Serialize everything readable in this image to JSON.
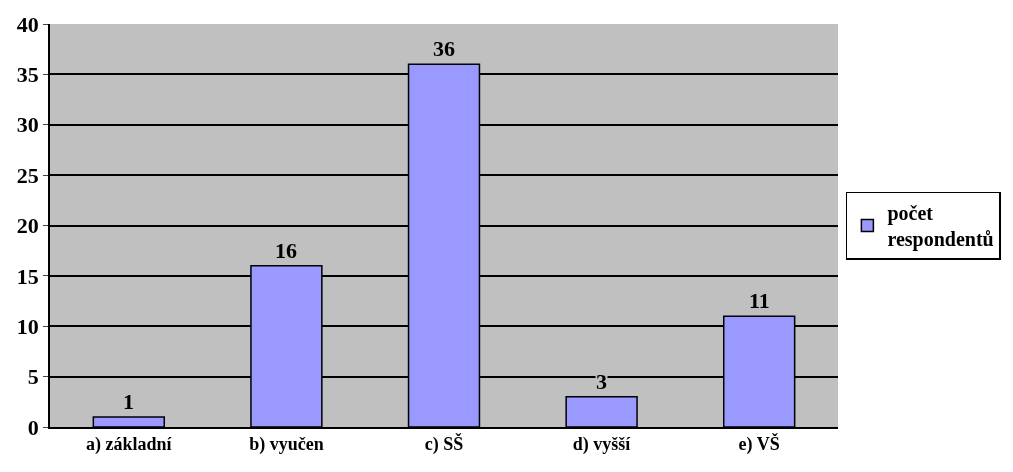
{
  "chart_data": {
    "type": "bar",
    "categories": [
      "a) základní",
      "b) vyučen",
      "c) SŠ",
      "d) vyšší",
      "e) VŠ"
    ],
    "series": [
      {
        "name": "počet respondentů",
        "color": "#9999ff",
        "values": [
          1,
          16,
          36,
          3,
          11
        ]
      }
    ],
    "ylim": [
      0,
      40
    ],
    "yticks": [
      0,
      5,
      10,
      15,
      20,
      25,
      30,
      35,
      40
    ],
    "grid": "y",
    "legend": "right",
    "data_labels": true
  }
}
